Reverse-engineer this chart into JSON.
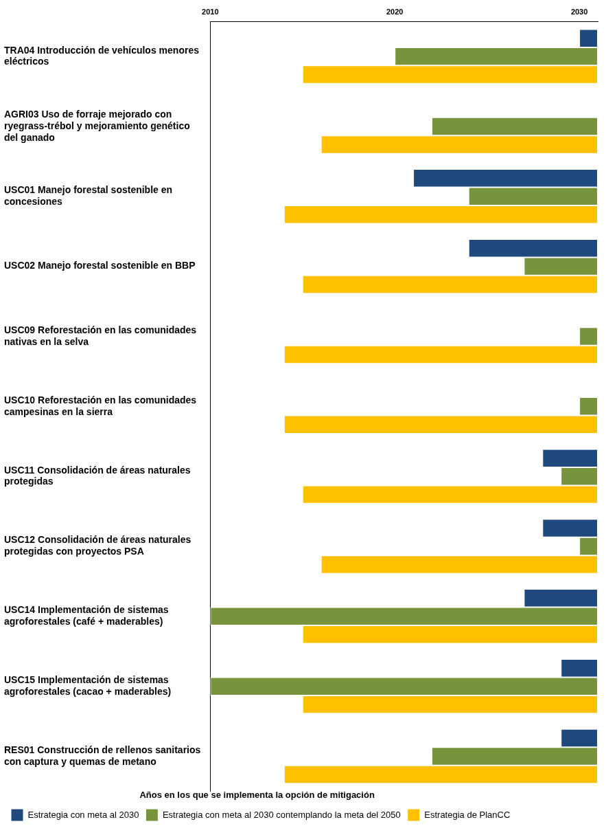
{
  "chart_data": {
    "type": "bar",
    "orientation": "horizontal",
    "categories": [
      "TRA04 Introducción de vehículos menores eléctricos",
      "AGRI03 Uso de forraje mejorado con ryegrass-trébol y mejoramiento genético del ganado",
      "USC01 Manejo forestal sostenible en concesiones",
      "USC02 Manejo forestal sostenible en BBP",
      "USC09 Reforestación en las comunidades nativas en la selva",
      "USC10 Reforestación en las comunidades campesinas en la sierra",
      "USC11 Consolidación de áreas naturales protegidas",
      "USC12 Consolidación de áreas naturales protegidas con proyectos PSA",
      "USC14 Implementación de sistemas agroforestales (café + maderables)",
      "USC15 Implementación de sistemas agroforestales (cacao + maderables)",
      "RES01 Construcción de rellenos sanitarios con captura y quemas de metano"
    ],
    "series": [
      {
        "name": "Estrategia con meta al 2030",
        "color": "#1f497d",
        "base": [
          2030,
          null,
          2021,
          2024,
          null,
          null,
          2028,
          2028,
          2027,
          2029,
          2029
        ],
        "values": [
          1,
          null,
          10,
          7,
          null,
          null,
          3,
          3,
          4,
          2,
          2
        ]
      },
      {
        "name": "Estrategia con meta al 2030 contemplando la meta del 2050",
        "color": "#77933c",
        "base": [
          2020,
          2022,
          2024,
          2027,
          2030,
          2030,
          2029,
          2030,
          2010,
          2010,
          2022
        ],
        "values": [
          11,
          9,
          7,
          4,
          1,
          1,
          2,
          1,
          21,
          21,
          9
        ]
      },
      {
        "name": "Estrategia de PlanCC",
        "color": "#ffc000",
        "base": [
          2015,
          2016,
          2014,
          2015,
          2014,
          2014,
          2015,
          2016,
          2015,
          2015,
          2014
        ],
        "values": [
          16,
          15,
          17,
          16,
          17,
          17,
          16,
          15,
          16,
          16,
          17
        ]
      }
    ],
    "xlim": [
      2010,
      2031
    ],
    "xticks": [
      2010,
      2020,
      2030
    ],
    "legend": "bottom",
    "legend_title": "Años en los que se implementa la opción de mitigación"
  }
}
